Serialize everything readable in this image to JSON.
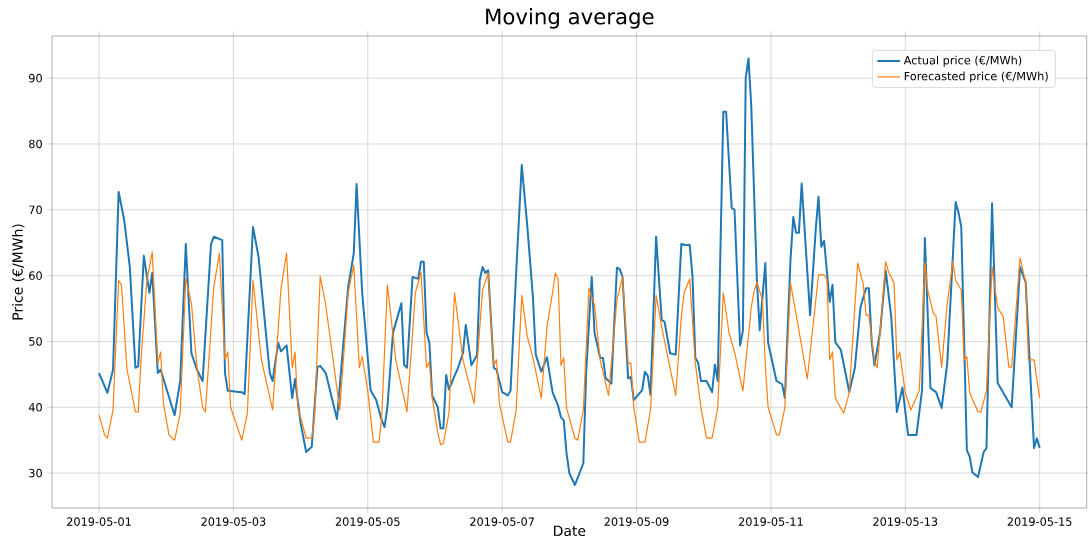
{
  "chart_data": {
    "type": "line",
    "title": "Moving average",
    "xlabel": "Date",
    "ylabel": "Price (€/MWh)",
    "xlim": [
      "2019-04-30T07:12",
      "2019-05-15T16:48"
    ],
    "xticks": [
      "2019-05-01",
      "2019-05-03",
      "2019-05-05",
      "2019-05-07",
      "2019-05-09",
      "2019-05-11",
      "2019-05-13",
      "2019-05-15"
    ],
    "ylim": [
      24.7,
      96.4
    ],
    "yticks": [
      30,
      40,
      50,
      60,
      70,
      80,
      90
    ],
    "grid": true,
    "legend": "top right",
    "series": [
      {
        "name": "Actual price (€/MWh)",
        "color": "#1f77b4",
        "x": [
          "2019-05-01T00:00",
          "2019-05-01T03:00",
          "2019-05-01T05:00",
          "2019-05-01T07:00",
          "2019-05-01T09:00",
          "2019-05-01T11:00",
          "2019-05-01T13:00",
          "2019-05-01T14:00",
          "2019-05-01T16:00",
          "2019-05-01T18:00",
          "2019-05-01T19:00",
          "2019-05-01T21:00",
          "2019-05-01T22:00",
          "2019-05-02T03:00",
          "2019-05-02T05:00",
          "2019-05-02T07:00",
          "2019-05-02T09:00",
          "2019-05-02T11:00",
          "2019-05-02T13:00",
          "2019-05-02T16:00",
          "2019-05-02T17:00",
          "2019-05-02T20:00",
          "2019-05-02T21:00",
          "2019-05-02T22:00",
          "2019-05-03T03:00",
          "2019-05-03T04:00",
          "2019-05-03T07:00",
          "2019-05-03T09:00",
          "2019-05-03T13:00",
          "2019-05-03T14:00",
          "2019-05-03T16:00",
          "2019-05-03T17:00",
          "2019-05-03T19:00",
          "2019-05-03T21:00",
          "2019-05-03T22:00",
          "2019-05-04T00:00",
          "2019-05-04T02:00",
          "2019-05-04T04:00",
          "2019-05-04T06:00",
          "2019-05-04T07:00",
          "2019-05-04T09:00",
          "2019-05-04T13:00",
          "2019-05-04T17:00",
          "2019-05-04T19:00",
          "2019-05-04T20:00",
          "2019-05-04T22:00",
          "2019-05-05T01:00",
          "2019-05-05T03:00",
          "2019-05-05T05:00",
          "2019-05-05T06:00",
          "2019-05-05T07:00",
          "2019-05-05T09:00",
          "2019-05-05T12:00",
          "2019-05-05T13:00",
          "2019-05-05T14:00",
          "2019-05-05T16:00",
          "2019-05-05T18:00",
          "2019-05-05T19:00",
          "2019-05-05T20:00",
          "2019-05-05T21:00",
          "2019-05-05T22:00",
          "2019-05-05T23:00",
          "2019-05-06T01:00",
          "2019-05-06T02:00",
          "2019-05-06T03:00",
          "2019-05-06T04:00",
          "2019-05-06T05:00",
          "2019-05-06T07:00",
          "2019-05-06T08:00",
          "2019-05-06T10:00",
          "2019-05-06T11:00",
          "2019-05-06T13:00",
          "2019-05-06T15:00",
          "2019-05-06T16:00",
          "2019-05-06T17:00",
          "2019-05-06T18:00",
          "2019-05-06T19:00",
          "2019-05-06T21:00",
          "2019-05-06T22:00",
          "2019-05-07T00:00",
          "2019-05-07T02:00",
          "2019-05-07T03:00",
          "2019-05-07T05:00",
          "2019-05-07T07:00",
          "2019-05-07T09:00",
          "2019-05-07T11:00",
          "2019-05-07T12:00",
          "2019-05-07T14:00",
          "2019-05-07T16:00",
          "2019-05-07T18:00",
          "2019-05-07T20:00",
          "2019-05-07T21:00",
          "2019-05-07T22:00",
          "2019-05-07T23:00",
          "2019-05-08T00:00",
          "2019-05-08T02:00",
          "2019-05-08T05:00",
          "2019-05-08T06:00",
          "2019-05-08T08:00",
          "2019-05-08T09:00",
          "2019-05-08T11:00",
          "2019-05-08T12:00",
          "2019-05-08T13:00",
          "2019-05-08T15:00",
          "2019-05-08T17:00",
          "2019-05-08T18:00",
          "2019-05-08T19:00",
          "2019-05-08T21:00",
          "2019-05-08T22:00",
          "2019-05-08T23:00",
          "2019-05-09T02:00",
          "2019-05-09T03:00",
          "2019-05-09T04:00",
          "2019-05-09T05:00",
          "2019-05-09T07:00",
          "2019-05-09T09:00",
          "2019-05-09T10:00",
          "2019-05-09T12:00",
          "2019-05-09T14:00",
          "2019-05-09T16:00",
          "2019-05-09T18:00",
          "2019-05-09T19:00",
          "2019-05-09T20:00",
          "2019-05-09T21:00",
          "2019-05-09T22:00",
          "2019-05-09T23:00",
          "2019-05-10T01:00",
          "2019-05-10T03:00",
          "2019-05-10T04:00",
          "2019-05-10T05:00",
          "2019-05-10T07:00",
          "2019-05-10T08:00",
          "2019-05-10T10:00",
          "2019-05-10T11:00",
          "2019-05-10T13:00",
          "2019-05-10T14:00",
          "2019-05-10T15:00",
          "2019-05-10T16:00",
          "2019-05-10T17:00",
          "2019-05-10T19:00",
          "2019-05-10T20:00",
          "2019-05-10T22:00",
          "2019-05-10T23:00",
          "2019-05-11T02:00",
          "2019-05-11T04:00",
          "2019-05-11T05:00",
          "2019-05-11T07:00",
          "2019-05-11T08:00",
          "2019-05-11T09:00",
          "2019-05-11T10:00",
          "2019-05-11T11:00",
          "2019-05-11T14:00",
          "2019-05-11T16:00",
          "2019-05-11T17:00",
          "2019-05-11T18:00",
          "2019-05-11T19:00",
          "2019-05-11T21:00",
          "2019-05-11T22:00",
          "2019-05-11T23:00",
          "2019-05-12T01:00",
          "2019-05-12T04:00",
          "2019-05-12T06:00",
          "2019-05-12T08:00",
          "2019-05-12T10:00",
          "2019-05-12T11:00",
          "2019-05-12T12:00",
          "2019-05-12T13:00",
          "2019-05-12T15:00",
          "2019-05-12T17:00",
          "2019-05-12T19:00",
          "2019-05-12T21:00",
          "2019-05-12T23:00",
          "2019-05-13T01:00",
          "2019-05-13T04:00",
          "2019-05-13T06:00",
          "2019-05-13T07:00",
          "2019-05-13T09:00",
          "2019-05-13T11:00",
          "2019-05-13T13:00",
          "2019-05-13T15:00",
          "2019-05-13T18:00",
          "2019-05-13T19:00",
          "2019-05-13T20:00",
          "2019-05-13T22:00",
          "2019-05-13T23:00",
          "2019-05-14T00:00",
          "2019-05-14T02:00",
          "2019-05-14T04:00",
          "2019-05-14T05:00",
          "2019-05-14T07:00",
          "2019-05-14T09:00",
          "2019-05-14T14:00",
          "2019-05-14T17:00",
          "2019-05-14T19:00",
          "2019-05-14T22:00",
          "2019-05-14T23:00",
          "2019-05-15T00:00"
        ],
        "values": [
          45.2,
          42.2,
          45.7,
          72.7,
          68.4,
          61.3,
          46,
          46.2,
          63,
          57.4,
          60.4,
          45.2,
          45.7,
          38.8,
          44,
          64.8,
          48.2,
          45.7,
          44,
          64.8,
          65.9,
          65.4,
          45.2,
          42.5,
          42.3,
          42,
          67.4,
          62.8,
          45.2,
          44,
          49.8,
          48.5,
          49.4,
          41.4,
          44.3,
          37.6,
          33.2,
          34,
          46.1,
          46.3,
          45.2,
          38.2,
          58.3,
          63.4,
          73.9,
          57.4,
          42.6,
          41.1,
          38,
          37,
          40,
          51.3,
          55.8,
          46.4,
          46,
          59.8,
          59.5,
          62.1,
          62.1,
          51.3,
          49.8,
          41.8,
          40,
          36.8,
          36.8,
          44.9,
          42.7,
          44.8,
          45.7,
          48.2,
          52.5,
          46.4,
          47.9,
          59.3,
          61.3,
          60.4,
          60.8,
          46,
          45.7,
          42.3,
          41.8,
          42.5,
          60.4,
          76.8,
          67.4,
          56.7,
          48,
          45.4,
          47.6,
          42.3,
          40.2,
          38.5,
          38,
          33,
          30,
          28.2,
          31.5,
          45.2,
          59.8,
          51.3,
          47.5,
          47.5,
          44.4,
          43.6,
          61.2,
          61,
          59.8,
          44.4,
          44.6,
          41.1,
          42.6,
          45.4,
          44.8,
          41.9,
          65.9,
          53.3,
          53,
          48.2,
          48,
          64.8,
          64.6,
          64.7,
          59.8,
          47.5,
          46.8,
          44,
          44,
          42.3,
          46.5,
          44,
          84.9,
          84.9,
          70.3,
          70,
          49.4,
          51.6,
          90,
          93,
          85.6,
          59.3,
          51.7,
          61.9,
          49.8,
          44,
          43.5,
          41.4,
          62.4,
          68.9,
          66.5,
          66.5,
          74,
          54,
          66.9,
          72,
          64.4,
          65.3,
          56,
          58.6,
          49.9,
          48.7,
          42.3,
          46,
          55.2,
          58.1,
          58.1,
          49.9,
          46.4,
          51.4,
          60.8,
          53.7,
          39.3,
          43,
          35.8,
          35.8,
          42.6,
          65.7,
          42.9,
          42.3,
          39.9,
          46.7,
          71.2,
          69.6,
          67.4,
          33.5,
          32.5,
          30.1,
          29.4,
          33.2,
          33.8,
          71,
          43.7,
          40,
          61.3,
          59,
          33.8,
          35.3,
          33.8
        ]
      },
      {
        "name": "Forecasted price (€/MWh)",
        "color": "#ff7f0e",
        "x": [
          "2019-05-01T00:00",
          "2019-05-01T02:00",
          "2019-05-01T03:00",
          "2019-05-01T05:00",
          "2019-05-01T07:00",
          "2019-05-01T08:00",
          "2019-05-01T10:00",
          "2019-05-01T13:00",
          "2019-05-01T14:00",
          "2019-05-01T15:00",
          "2019-05-01T17:00",
          "2019-05-01T19:00",
          "2019-05-01T21:00",
          "2019-05-01T22:00",
          "2019-05-01T23:00",
          "2019-05-02T01:00",
          "2019-05-02T03:00",
          "2019-05-02T05:00",
          "2019-05-02T07:00",
          "2019-05-02T09:00",
          "2019-05-02T11:00",
          "2019-05-02T13:00",
          "2019-05-02T14:00",
          "2019-05-02T17:00",
          "2019-05-02T19:00",
          "2019-05-02T21:00",
          "2019-05-02T22:00",
          "2019-05-02T23:00",
          "2019-05-03T03:00",
          "2019-05-03T05:00",
          "2019-05-03T07:00",
          "2019-05-03T10:00",
          "2019-05-03T14:00",
          "2019-05-03T17:00",
          "2019-05-03T19:00",
          "2019-05-03T21:00",
          "2019-05-03T22:00",
          "2019-05-03T23:00",
          "2019-05-04T02:00",
          "2019-05-04T04:00",
          "2019-05-04T05:00",
          "2019-05-04T07:00",
          "2019-05-04T09:00",
          "2019-05-04T14:00",
          "2019-05-04T17:00",
          "2019-05-04T19:00",
          "2019-05-04T21:00",
          "2019-05-04T22:00",
          "2019-05-05T00:00",
          "2019-05-05T02:00",
          "2019-05-05T04:00",
          "2019-05-05T05:00",
          "2019-05-05T07:00",
          "2019-05-05T10:00",
          "2019-05-05T14:00",
          "2019-05-05T17:00",
          "2019-05-05T19:00",
          "2019-05-05T21:00",
          "2019-05-05T22:00",
          "2019-05-05T23:00",
          "2019-05-06T01:00",
          "2019-05-06T02:00",
          "2019-05-06T03:00",
          "2019-05-06T05:00",
          "2019-05-06T07:00",
          "2019-05-06T10:00",
          "2019-05-06T14:00",
          "2019-05-06T17:00",
          "2019-05-06T19:00",
          "2019-05-06T21:00",
          "2019-05-06T22:00",
          "2019-05-06T23:00",
          "2019-05-07T02:00",
          "2019-05-07T03:00",
          "2019-05-07T05:00",
          "2019-05-07T07:00",
          "2019-05-07T09:00",
          "2019-05-07T11:00",
          "2019-05-07T14:00",
          "2019-05-07T16:00",
          "2019-05-07T18:00",
          "2019-05-07T19:00",
          "2019-05-07T20:00",
          "2019-05-07T21:00",
          "2019-05-07T22:00",
          "2019-05-07T23:00",
          "2019-05-08T02:00",
          "2019-05-08T03:00",
          "2019-05-08T05:00",
          "2019-05-08T07:00",
          "2019-05-08T09:00",
          "2019-05-08T11:00",
          "2019-05-08T14:00",
          "2019-05-08T17:00",
          "2019-05-08T19:00",
          "2019-05-08T21:00",
          "2019-05-08T22:00",
          "2019-05-08T23:00",
          "2019-05-09T01:00",
          "2019-05-09T03:00",
          "2019-05-09T05:00",
          "2019-05-09T07:00",
          "2019-05-09T09:00",
          "2019-05-09T11:00",
          "2019-05-09T14:00",
          "2019-05-09T16:00",
          "2019-05-09T17:00",
          "2019-05-09T19:00",
          "2019-05-09T21:00",
          "2019-05-09T23:00",
          "2019-05-10T01:00",
          "2019-05-10T03:00",
          "2019-05-10T05:00",
          "2019-05-10T07:00",
          "2019-05-10T09:00",
          "2019-05-10T11:00",
          "2019-05-10T14:00",
          "2019-05-10T17:00",
          "2019-05-10T18:00",
          "2019-05-10T19:00",
          "2019-05-10T21:00",
          "2019-05-10T22:00",
          "2019-05-10T23:00",
          "2019-05-11T02:00",
          "2019-05-11T03:00",
          "2019-05-11T05:00",
          "2019-05-11T07:00",
          "2019-05-11T10:00",
          "2019-05-11T13:00",
          "2019-05-11T17:00",
          "2019-05-11T19:00",
          "2019-05-11T20:00",
          "2019-05-11T21:00",
          "2019-05-11T22:00",
          "2019-05-11T23:00",
          "2019-05-12T02:00",
          "2019-05-12T04:00",
          "2019-05-12T07:00",
          "2019-05-12T09:00",
          "2019-05-12T10:00",
          "2019-05-12T11:00",
          "2019-05-12T13:00",
          "2019-05-12T14:00",
          "2019-05-12T17:00",
          "2019-05-12T18:00",
          "2019-05-12T20:00",
          "2019-05-12T21:00",
          "2019-05-12T22:00",
          "2019-05-13T00:00",
          "2019-05-13T02:00",
          "2019-05-13T05:00",
          "2019-05-13T07:00",
          "2019-05-13T08:00",
          "2019-05-13T10:00",
          "2019-05-13T11:00",
          "2019-05-13T13:00",
          "2019-05-13T15:00",
          "2019-05-13T17:00",
          "2019-05-13T18:00",
          "2019-05-13T20:00",
          "2019-05-13T21:00",
          "2019-05-13T22:00",
          "2019-05-13T23:00",
          "2019-05-14T02:00",
          "2019-05-14T03:00",
          "2019-05-14T05:00",
          "2019-05-14T07:00",
          "2019-05-14T09:00",
          "2019-05-14T11:00",
          "2019-05-14T13:00",
          "2019-05-14T14:00",
          "2019-05-14T17:00",
          "2019-05-14T19:00",
          "2019-05-14T20:00",
          "2019-05-14T22:00",
          "2019-05-15T00:00"
        ],
        "values": [
          38.8,
          35.8,
          35.3,
          39.6,
          59.3,
          58.6,
          45.7,
          39.3,
          39.3,
          47.2,
          58.9,
          63.6,
          46.7,
          48.4,
          40.6,
          35.8,
          35,
          39.1,
          59.6,
          55.8,
          46,
          40,
          39.3,
          58.3,
          63.4,
          47.2,
          48.4,
          40,
          35,
          39.1,
          59.3,
          47.2,
          39.6,
          58.1,
          63.4,
          46,
          48.4,
          40,
          35.3,
          35.3,
          38.5,
          59.9,
          55.5,
          39.6,
          57.4,
          61.6,
          46,
          47.7,
          42.5,
          34.7,
          34.7,
          38.5,
          58.6,
          47.2,
          39.3,
          57.4,
          60.5,
          46,
          46.9,
          41.5,
          36.2,
          34.3,
          34.5,
          39.1,
          57.4,
          47.2,
          40.6,
          57.8,
          60.4,
          46.4,
          47.2,
          40.6,
          34.7,
          34.7,
          39.6,
          57,
          50.7,
          47.5,
          41.4,
          52.2,
          57.4,
          60.4,
          59.5,
          46.4,
          47.5,
          39.9,
          35.3,
          35,
          39.6,
          58.1,
          55.5,
          47.2,
          41.8,
          56.3,
          59.8,
          46.7,
          46.7,
          40,
          34.7,
          34.7,
          39.6,
          57,
          52.2,
          48,
          41.8,
          53.7,
          57.4,
          59.5,
          46.7,
          40,
          35.3,
          35.3,
          39.9,
          57.4,
          51.4,
          48.4,
          42.5,
          55.2,
          57.6,
          59,
          56.3,
          46.4,
          40,
          35.8,
          35.8,
          40,
          58.9,
          51.7,
          44.3,
          60.1,
          60.1,
          59.5,
          47.2,
          48.4,
          41.4,
          39.1,
          42.2,
          61.9,
          58.7,
          54,
          54,
          47,
          46,
          62.1,
          60.6,
          58.9,
          47.2,
          48.4,
          42.2,
          39.6,
          42.5,
          61.9,
          57.8,
          54.3,
          53.8,
          46.1,
          55.8,
          62.1,
          59.3,
          57.8,
          47.2,
          47.7,
          42.2,
          39.3,
          39.3,
          42.5,
          61.3,
          55.2,
          53.7,
          46.1,
          46.1,
          62.7,
          59,
          47.2,
          47.2,
          41.4
        ]
      }
    ]
  }
}
